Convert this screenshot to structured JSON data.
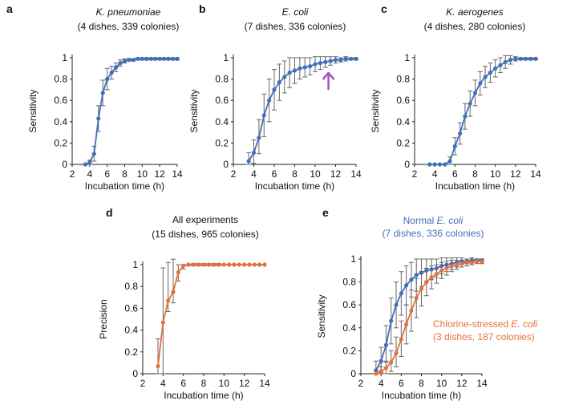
{
  "colors": {
    "blue": "#3f6fbe",
    "orange": "#e5703a",
    "error_bar": "#666666",
    "arrow": "#9b59b6",
    "axis": "#222222"
  },
  "chart_data": [
    {
      "panel_label": "a",
      "type": "line",
      "title_italic": "K. pneumoniae",
      "subtitle": "(4 dishes, 339 colonies)",
      "xlabel": "Incubation time (h)",
      "ylabel": "Sensitivity",
      "xlim": [
        2,
        14
      ],
      "ylim": [
        0,
        1
      ],
      "xticks": [
        "2",
        "4",
        "6",
        "8",
        "10",
        "12",
        "14"
      ],
      "yticks": [
        "0",
        "0.2",
        "0.4",
        "0.6",
        "0.8",
        "1"
      ],
      "series": [
        {
          "color": "blue",
          "x": [
            3.5,
            4,
            4.5,
            5,
            5.5,
            6,
            6.5,
            7,
            7.5,
            8,
            8.5,
            9,
            9.5,
            10,
            10.5,
            11,
            11.5,
            12,
            12.5,
            13,
            13.5,
            14
          ],
          "y": [
            0,
            0.02,
            0.1,
            0.43,
            0.67,
            0.8,
            0.86,
            0.91,
            0.95,
            0.97,
            0.98,
            0.98,
            0.99,
            0.99,
            0.99,
            0.99,
            0.99,
            0.99,
            0.99,
            0.99,
            0.99,
            0.99
          ],
          "err_lo": [
            0,
            0.02,
            0.07,
            0.12,
            0.12,
            0.1,
            0.06,
            0.04,
            0.03,
            0.02,
            0.01,
            0.01,
            0.01,
            0.01,
            0.01,
            0.01,
            0.01,
            0.01,
            0.01,
            0.01,
            0.01,
            0.01
          ],
          "err_hi": [
            0,
            0.02,
            0.07,
            0.12,
            0.12,
            0.1,
            0.06,
            0.04,
            0.03,
            0.02,
            0.01,
            0.01,
            0.01,
            0.01,
            0.01,
            0.01,
            0.01,
            0.01,
            0.01,
            0.01,
            0.01,
            0.01
          ]
        }
      ]
    },
    {
      "panel_label": "b",
      "type": "line",
      "title_italic": "E. coli",
      "subtitle": "(7 dishes, 336 colonies)",
      "xlabel": "Incubation time (h)",
      "ylabel": "Sensitivity",
      "xlim": [
        2,
        14
      ],
      "ylim": [
        0,
        1
      ],
      "xticks": [
        "2",
        "4",
        "6",
        "8",
        "10",
        "12",
        "14"
      ],
      "yticks": [
        "0",
        "0.2",
        "0.4",
        "0.6",
        "0.8",
        "1"
      ],
      "arrow_at_x": 11.3,
      "series": [
        {
          "color": "blue",
          "x": [
            3.5,
            4,
            4.5,
            5,
            5.5,
            6,
            6.5,
            7,
            7.5,
            8,
            8.5,
            9,
            9.5,
            10,
            10.5,
            11,
            11.5,
            12,
            12.5,
            13,
            13.5,
            14
          ],
          "y": [
            0.03,
            0.11,
            0.25,
            0.46,
            0.6,
            0.7,
            0.77,
            0.82,
            0.86,
            0.88,
            0.9,
            0.91,
            0.92,
            0.94,
            0.95,
            0.96,
            0.97,
            0.98,
            0.98,
            0.99,
            0.99,
            0.99
          ],
          "err_lo": [
            0.03,
            0.1,
            0.15,
            0.2,
            0.2,
            0.19,
            0.17,
            0.15,
            0.14,
            0.12,
            0.1,
            0.09,
            0.08,
            0.07,
            0.06,
            0.05,
            0.04,
            0.03,
            0.02,
            0.02,
            0.01,
            0.01
          ],
          "err_hi": [
            0.08,
            0.12,
            0.17,
            0.2,
            0.2,
            0.19,
            0.17,
            0.15,
            0.14,
            0.12,
            0.1,
            0.09,
            0.08,
            0.07,
            0.06,
            0.05,
            0.04,
            0.03,
            0.02,
            0.02,
            0.01,
            0.01
          ]
        }
      ]
    },
    {
      "panel_label": "c",
      "type": "line",
      "title_italic": "K. aerogenes",
      "subtitle": "(4 dishes, 280 colonies)",
      "xlabel": "Incubation time (h)",
      "ylabel": "Sensitivity",
      "xlim": [
        2,
        14
      ],
      "ylim": [
        0,
        1
      ],
      "xticks": [
        "2",
        "4",
        "6",
        "8",
        "10",
        "12",
        "14"
      ],
      "yticks": [
        "0",
        "0.2",
        "0.4",
        "0.6",
        "0.8",
        "1"
      ],
      "series": [
        {
          "color": "blue",
          "x": [
            3.5,
            4,
            4.5,
            5,
            5.5,
            6,
            6.5,
            7,
            7.5,
            8,
            8.5,
            9,
            9.5,
            10,
            10.5,
            11,
            11.5,
            12,
            12.5,
            13,
            13.5,
            14
          ],
          "y": [
            0,
            0,
            0,
            0,
            0.03,
            0.17,
            0.29,
            0.45,
            0.57,
            0.67,
            0.76,
            0.82,
            0.86,
            0.9,
            0.93,
            0.96,
            0.98,
            0.99,
            0.99,
            0.99,
            0.99,
            0.99
          ],
          "err_lo": [
            0,
            0,
            0,
            0,
            0.03,
            0.08,
            0.1,
            0.12,
            0.12,
            0.12,
            0.11,
            0.1,
            0.09,
            0.08,
            0.07,
            0.06,
            0.04,
            0.02,
            0.01,
            0.01,
            0.01,
            0.01
          ],
          "err_hi": [
            0,
            0,
            0,
            0,
            0.04,
            0.08,
            0.1,
            0.12,
            0.12,
            0.12,
            0.11,
            0.1,
            0.09,
            0.08,
            0.07,
            0.06,
            0.04,
            0.02,
            0.01,
            0.01,
            0.01,
            0.01
          ]
        }
      ]
    },
    {
      "panel_label": "d",
      "type": "line",
      "title": "All experiments",
      "subtitle": "(15 dishes, 965 colonies)",
      "xlabel": "Incubation time (h)",
      "ylabel": "Precision",
      "xlim": [
        2,
        14
      ],
      "ylim": [
        0,
        1
      ],
      "xticks": [
        "2",
        "4",
        "6",
        "8",
        "10",
        "12",
        "14"
      ],
      "yticks": [
        "0",
        "0.2",
        "0.4",
        "0.6",
        "0.8",
        "1"
      ],
      "series": [
        {
          "color": "orange",
          "x": [
            3.5,
            4,
            4.5,
            5,
            5.5,
            6,
            6.5,
            7,
            7.5,
            8,
            8.5,
            9,
            9.5,
            10,
            10.5,
            11,
            11.5,
            12,
            12.5,
            13,
            13.5,
            14
          ],
          "y": [
            0.07,
            0.47,
            0.67,
            0.75,
            0.93,
            0.99,
            1,
            1,
            1,
            1,
            1,
            1,
            1,
            1,
            1,
            1,
            1,
            1,
            1,
            1,
            1,
            1
          ],
          "err_lo": [
            0.07,
            0.47,
            0.1,
            0.1,
            0.08,
            0.03,
            0.01,
            0.01,
            0.01,
            0.01,
            0.01,
            0.01,
            0.01,
            0,
            0,
            0,
            0,
            0,
            0,
            0,
            0,
            0
          ],
          "err_hi": [
            0.25,
            0.5,
            0.35,
            0.3,
            0.07,
            0.01,
            0,
            0.01,
            0.01,
            0.01,
            0.01,
            0.01,
            0.01,
            0,
            0,
            0,
            0,
            0,
            0,
            0,
            0,
            0
          ]
        }
      ]
    },
    {
      "panel_label": "e",
      "type": "line",
      "xlabel": "Incubation time (h)",
      "ylabel": "Sensitivity",
      "xlim": [
        2,
        14
      ],
      "ylim": [
        0,
        1
      ],
      "xticks": [
        "2",
        "4",
        "6",
        "8",
        "10",
        "12",
        "14"
      ],
      "yticks": [
        "0",
        "0.2",
        "0.4",
        "0.6",
        "0.8",
        "1"
      ],
      "series_labels": [
        {
          "color": "blue",
          "line1_prefix": "Normal ",
          "line1_italic": "E. coli",
          "line2": "(7 dishes, 336 colonies)"
        },
        {
          "color": "orange",
          "line1_prefix": "Chlorine-stressed ",
          "line1_italic": "E. coli",
          "line2": "(3 dishes, 187 colonies)"
        }
      ],
      "series": [
        {
          "color": "blue",
          "x": [
            3.5,
            4,
            4.5,
            5,
            5.5,
            6,
            6.5,
            7,
            7.5,
            8,
            8.5,
            9,
            9.5,
            10,
            10.5,
            11,
            11.5,
            12,
            12.5,
            13,
            13.5,
            14
          ],
          "y": [
            0.03,
            0.11,
            0.25,
            0.46,
            0.6,
            0.7,
            0.77,
            0.82,
            0.86,
            0.88,
            0.9,
            0.91,
            0.92,
            0.94,
            0.95,
            0.96,
            0.97,
            0.98,
            0.98,
            0.99,
            0.99,
            0.99
          ],
          "err_lo": [
            0.03,
            0.1,
            0.15,
            0.2,
            0.2,
            0.19,
            0.17,
            0.15,
            0.14,
            0.12,
            0.1,
            0.09,
            0.08,
            0.07,
            0.06,
            0.05,
            0.04,
            0.03,
            0.02,
            0.02,
            0.01,
            0.01
          ],
          "err_hi": [
            0.08,
            0.12,
            0.17,
            0.2,
            0.2,
            0.19,
            0.17,
            0.15,
            0.14,
            0.12,
            0.1,
            0.09,
            0.08,
            0.07,
            0.06,
            0.05,
            0.04,
            0.03,
            0.02,
            0.02,
            0.01,
            0.01
          ]
        },
        {
          "color": "orange",
          "x": [
            3.5,
            4,
            4.5,
            5,
            5.5,
            6,
            6.5,
            7,
            7.5,
            8,
            8.5,
            9,
            9.5,
            10,
            10.5,
            11,
            11.5,
            12,
            12.5,
            13,
            13.5,
            14
          ],
          "y": [
            0,
            0.02,
            0.05,
            0.1,
            0.18,
            0.3,
            0.43,
            0.55,
            0.66,
            0.74,
            0.8,
            0.84,
            0.87,
            0.9,
            0.92,
            0.94,
            0.95,
            0.96,
            0.97,
            0.97,
            0.98,
            0.98
          ],
          "err_lo": [
            0,
            0.02,
            0.05,
            0.08,
            0.12,
            0.15,
            0.17,
            0.18,
            0.17,
            0.15,
            0.12,
            0.1,
            0.08,
            0.07,
            0.06,
            0.05,
            0.04,
            0.03,
            0.03,
            0.02,
            0.02,
            0.02
          ],
          "err_hi": [
            0.03,
            0.04,
            0.06,
            0.1,
            0.14,
            0.16,
            0.17,
            0.18,
            0.17,
            0.15,
            0.12,
            0.1,
            0.08,
            0.07,
            0.06,
            0.05,
            0.04,
            0.03,
            0.03,
            0.02,
            0.02,
            0.02
          ]
        }
      ]
    }
  ]
}
